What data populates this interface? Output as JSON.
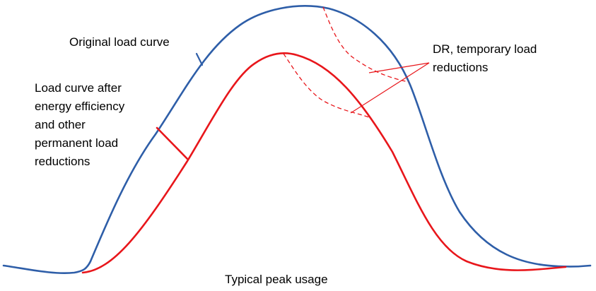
{
  "labels": {
    "original": "Original load curve",
    "after_lines": [
      "Load curve after",
      "energy efficiency",
      "and other",
      "permanent load",
      "reductions"
    ],
    "dr_lines": [
      "DR, temporary load",
      "reductions"
    ],
    "peak": "Typical peak usage"
  },
  "colors": {
    "original_curve": "#2e5ea8",
    "reduced_curve": "#e8161b",
    "dashed_curve": "#e8161b",
    "leader_line": "#e8161b",
    "text": "#000000"
  }
}
